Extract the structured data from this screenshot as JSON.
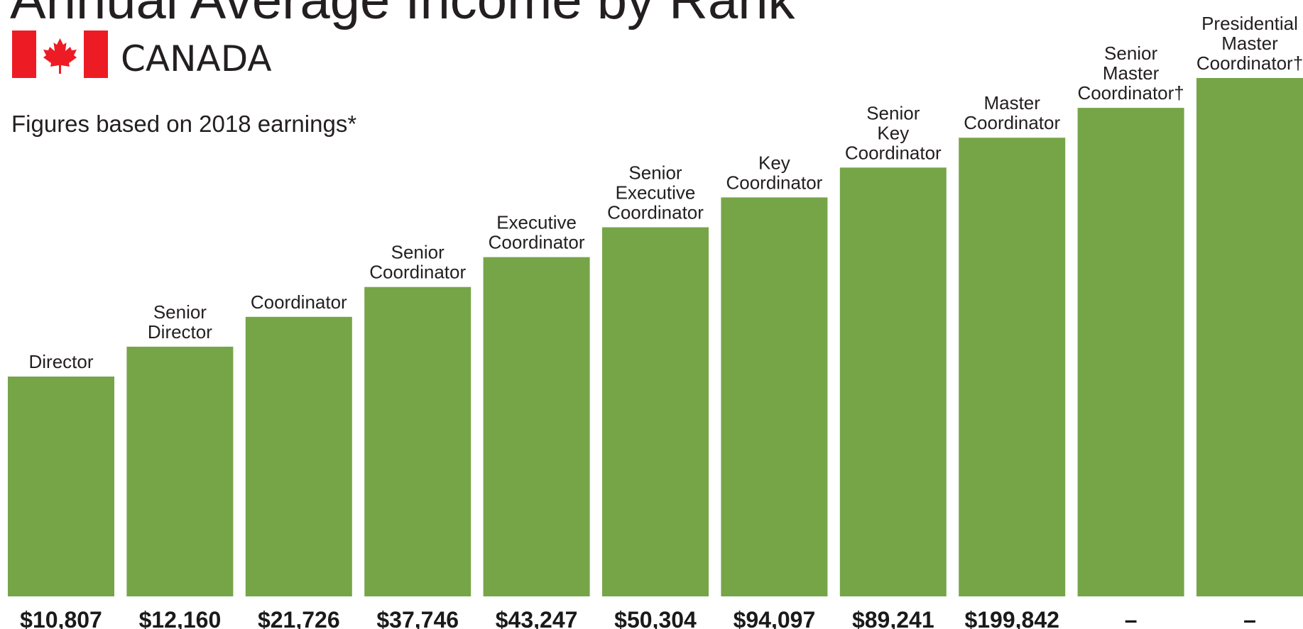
{
  "header": {
    "title": "Annual Average Income by Rank",
    "country": "CANADA",
    "subtitle": "Figures based on 2018 earnings*"
  },
  "colors": {
    "bar": "#76a548",
    "flag_red": "#ed1c24",
    "text": "#231f20"
  },
  "chart_data": {
    "type": "bar",
    "title": "Annual Average Income by Rank",
    "subtitle": "Figures based on 2018 earnings*",
    "xlabel": "",
    "ylabel": "",
    "grid": false,
    "legend": "none",
    "categories": [
      "Director",
      "Senior Director",
      "Coordinator",
      "Senior Coordinator",
      "Executive Coordinator",
      "Senior Executive Coordinator",
      "Key Coordinator",
      "Senior Key Coordinator",
      "Master Coordinator",
      "Senior Master Coordinator†",
      "Presidential Master Coordinator†"
    ],
    "category_label_lines": [
      [
        "Director"
      ],
      [
        "Senior",
        "Director"
      ],
      [
        "Coordinator"
      ],
      [
        "Senior",
        "Coordinator"
      ],
      [
        "Executive",
        "Coordinator"
      ],
      [
        "Senior",
        "Executive",
        "Coordinator"
      ],
      [
        "Key",
        "Coordinator"
      ],
      [
        "Senior",
        "Key",
        "Coordinator"
      ],
      [
        "Master",
        "Coordinator"
      ],
      [
        "Senior",
        "Master",
        "Coordinator†"
      ],
      [
        "Presidential",
        "Master",
        "Coordinator†"
      ]
    ],
    "value_labels": [
      "$10,807",
      "$12,160",
      "$21,726",
      "$37,746",
      "$43,247",
      "$50,304",
      "$94,097",
      "$89,241",
      "$199,842",
      "–",
      "–"
    ],
    "rank_level": [
      1,
      2,
      3,
      4,
      5,
      6,
      7,
      8,
      9,
      10,
      11
    ],
    "bar_scale": "bar heights increase step by step with rank and are not proportional to the income values"
  }
}
